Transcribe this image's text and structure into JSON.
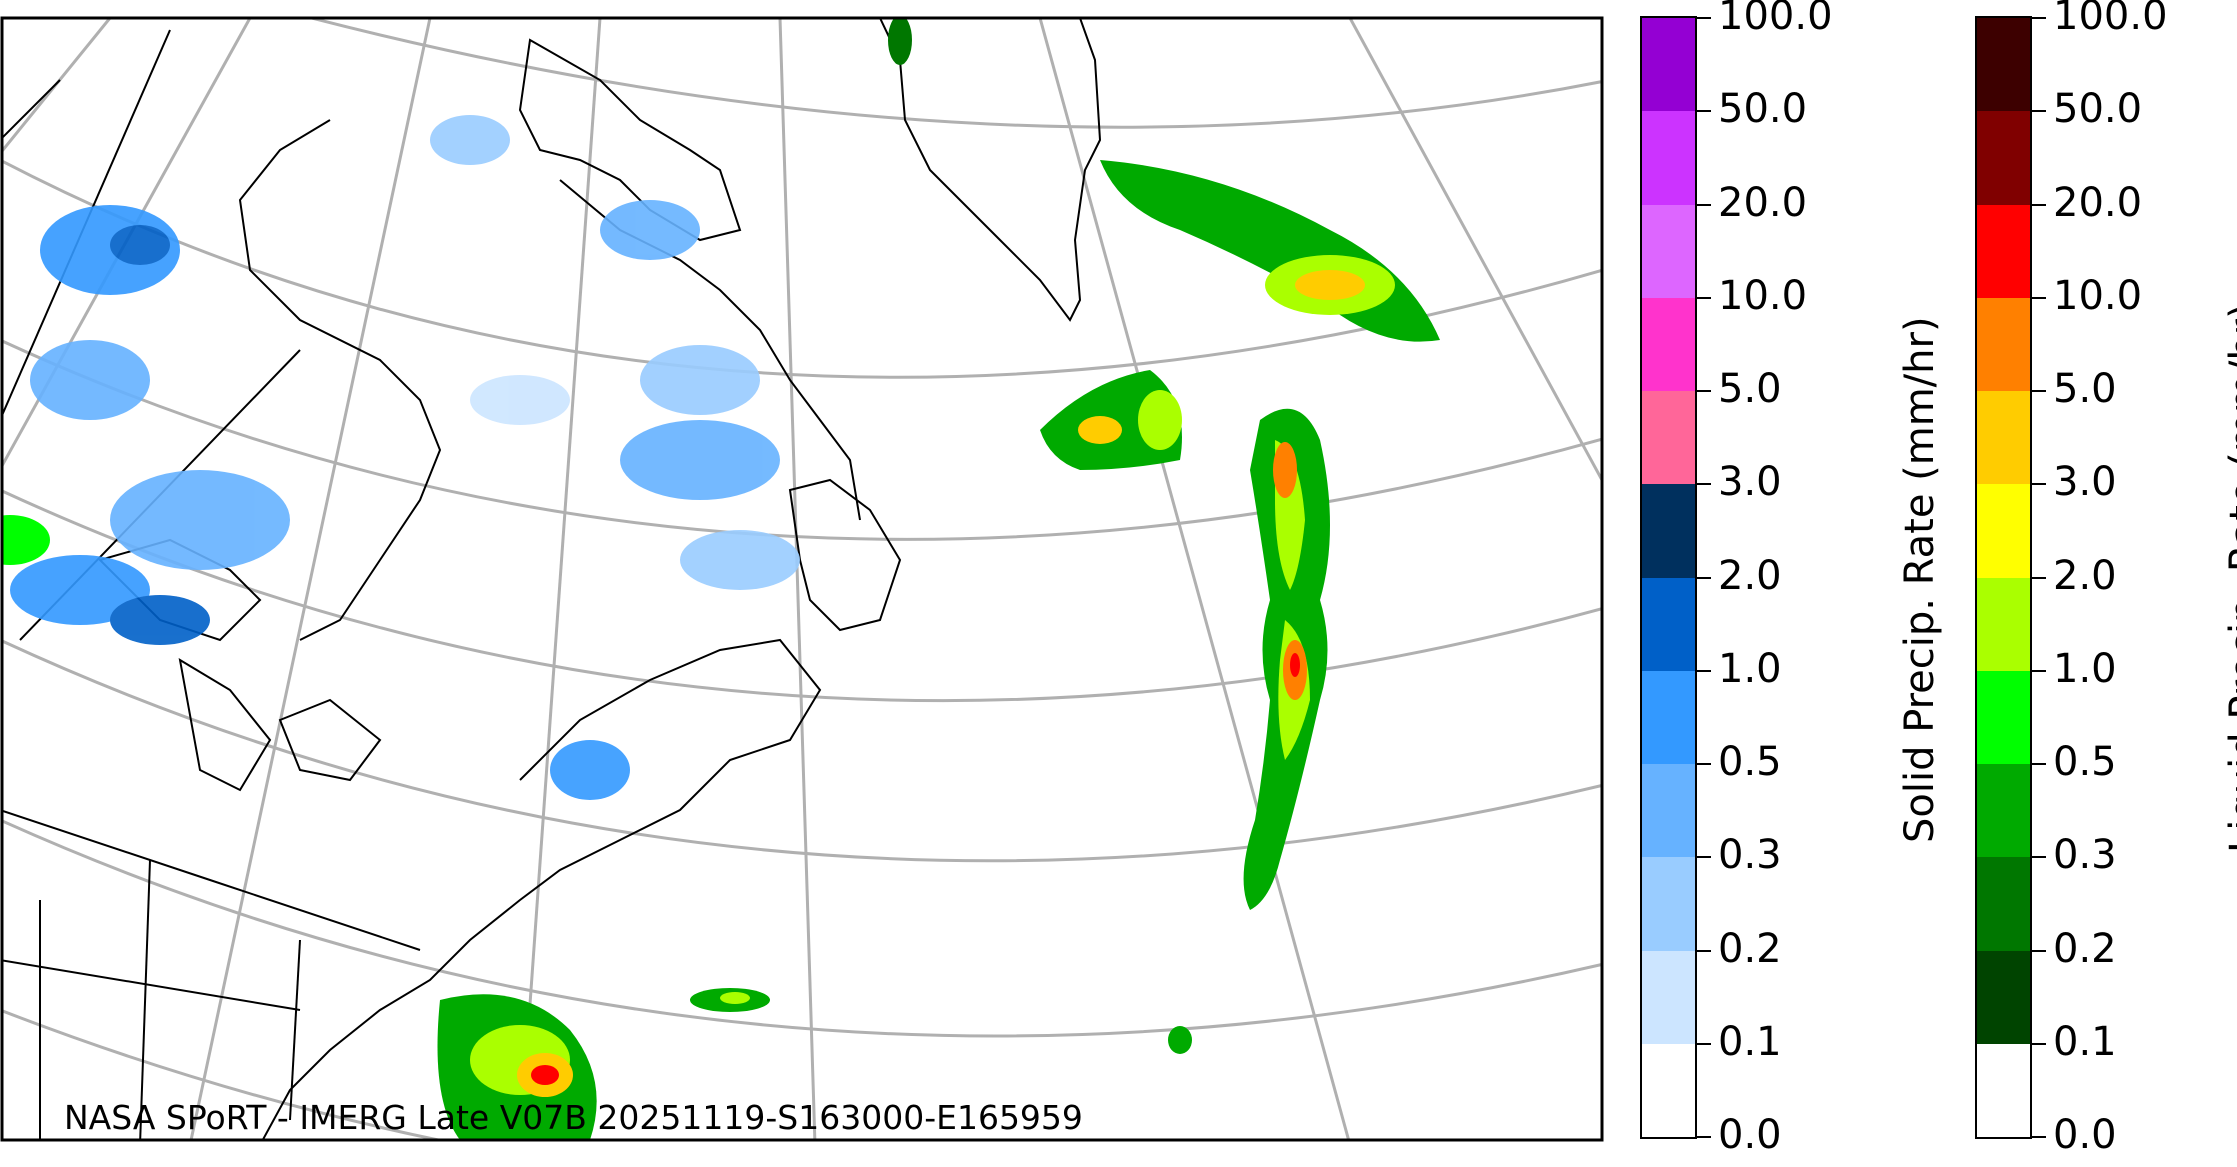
{
  "map": {
    "credit": "NASA SPoRT - IMERG Late V07B 20251119-S163000-E165959",
    "region": "Eastern North America and North Atlantic",
    "features": {
      "coastline_color": "#000000",
      "graticule_color": "#b0b0b0"
    }
  },
  "solid_colorbar": {
    "label": "Solid Precip. Rate (mm/hr)",
    "ticks": [
      "100.0",
      "50.0",
      "20.0",
      "10.0",
      "5.0",
      "3.0",
      "2.0",
      "1.0",
      "0.5",
      "0.3",
      "0.2",
      "0.1",
      "0.0"
    ],
    "colors": [
      "#9400d3",
      "#cc33ff",
      "#dd66ff",
      "#ff33cc",
      "#ff6699",
      "#00305e",
      "#0060c8",
      "#3399ff",
      "#66b2ff",
      "#99ccff",
      "#cce5ff",
      "#ffffff"
    ]
  },
  "liquid_colorbar": {
    "label": "Liquid Precip. Rate (mm/hr)",
    "ticks": [
      "100.0",
      "50.0",
      "20.0",
      "10.0",
      "5.0",
      "3.0",
      "2.0",
      "1.0",
      "0.5",
      "0.3",
      "0.2",
      "0.1",
      "0.0"
    ],
    "colors": [
      "#3d0000",
      "#800000",
      "#ff0000",
      "#ff8000",
      "#ffcc00",
      "#ffff00",
      "#aaff00",
      "#00ff00",
      "#00aa00",
      "#007700",
      "#004400",
      "#ffffff"
    ]
  }
}
